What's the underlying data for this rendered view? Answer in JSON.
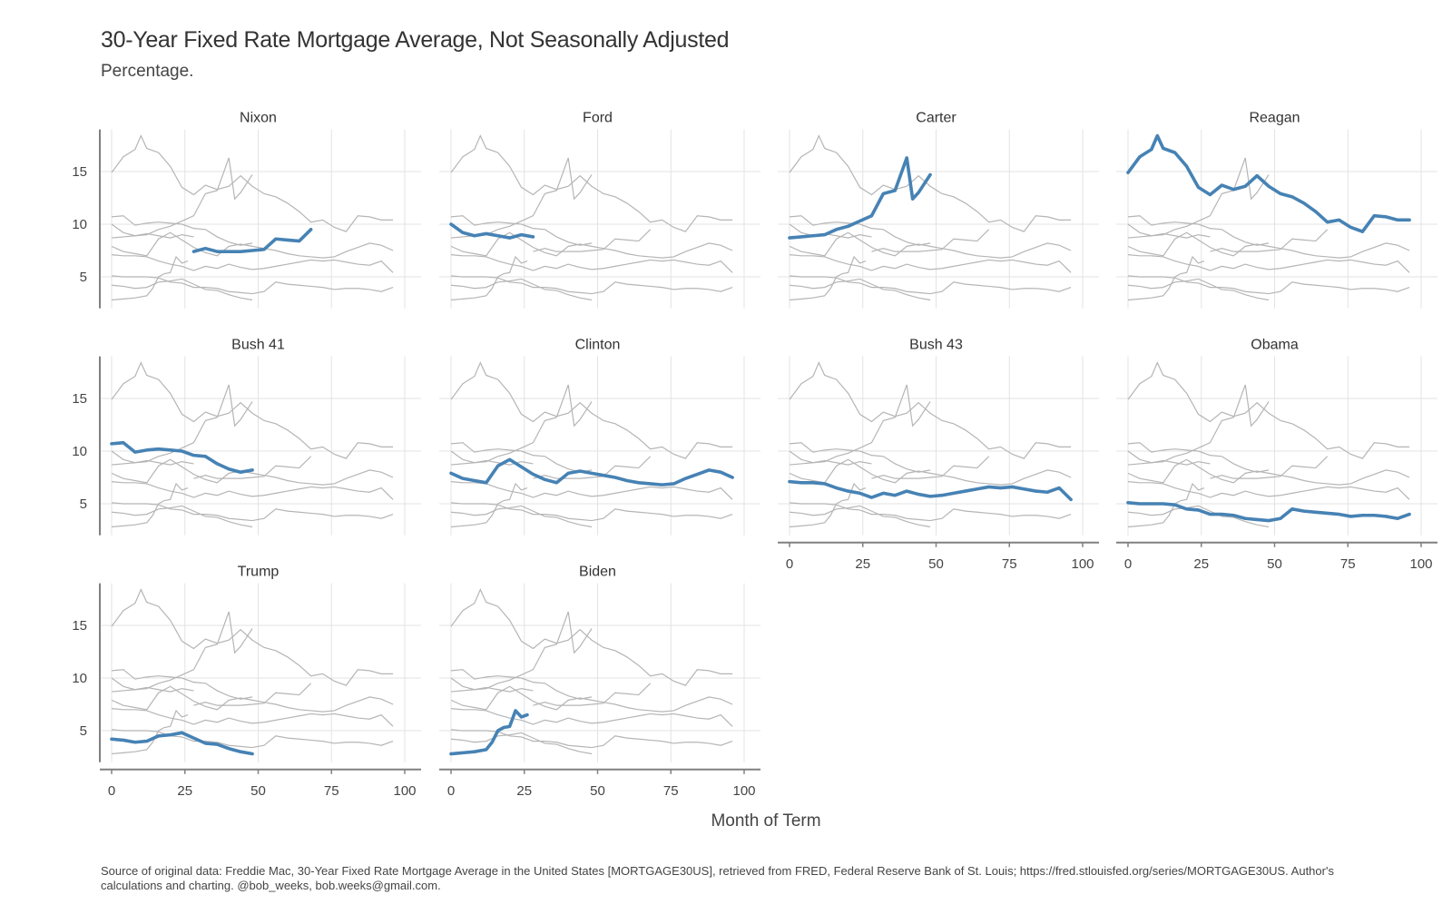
{
  "title": "30-Year Fixed Rate Mortgage Average, Not Seasonally Adjusted",
  "subtitle": "Percentage.",
  "x_axis_label": "Month of Term",
  "source_note": "Source of original data: Freddie Mac, 30-Year Fixed Rate Mortgage Average in the United States [MORTGAGE30US], retrieved from FRED, Federal Reserve Bank of St. Louis; https://fred.stlouisfed.org/series/MORTGAGE30US. Author's calculations and charting. @bob_weeks, bob.weeks@gmail.com.",
  "colors": {
    "highlight": "#4682b4",
    "background_series": "#b5b5b5",
    "grid": "#e3e3e3",
    "axis": "#808080"
  },
  "chart_data": {
    "type": "line",
    "layout": "small multiples, 4 columns x 3 rows",
    "x_ticks": [
      0,
      25,
      50,
      75,
      100
    ],
    "y_ticks": [
      5,
      10,
      15
    ],
    "xlim": [
      -4,
      102
    ],
    "ylim": [
      2,
      19
    ],
    "grid": true,
    "highlight_note": "each panel highlights its own president's series; all other presidents shown as thin gray lines",
    "series": [
      {
        "name": "Nixon",
        "x": [
          28,
          32,
          36,
          40,
          44,
          48,
          52,
          56,
          60,
          64,
          68
        ],
        "values": [
          7.4,
          7.7,
          7.4,
          7.4,
          7.4,
          7.5,
          7.6,
          8.6,
          8.5,
          8.4,
          9.5
        ]
      },
      {
        "name": "Ford",
        "x": [
          0,
          4,
          8,
          12,
          16,
          20,
          24,
          28
        ],
        "values": [
          10.0,
          9.2,
          8.9,
          9.1,
          8.9,
          8.7,
          9.0,
          8.8
        ]
      },
      {
        "name": "Carter",
        "x": [
          0,
          4,
          8,
          12,
          16,
          20,
          24,
          28,
          32,
          36,
          40,
          42,
          44,
          48
        ],
        "values": [
          8.7,
          8.8,
          8.9,
          9.0,
          9.5,
          9.8,
          10.3,
          10.8,
          12.9,
          13.2,
          16.3,
          12.4,
          13.0,
          14.7
        ]
      },
      {
        "name": "Reagan",
        "x": [
          0,
          4,
          8,
          10,
          12,
          16,
          20,
          24,
          28,
          32,
          36,
          40,
          44,
          48,
          52,
          56,
          60,
          64,
          68,
          72,
          76,
          80,
          84,
          88,
          92,
          96
        ],
        "values": [
          14.9,
          16.4,
          17.1,
          18.4,
          17.2,
          16.8,
          15.5,
          13.5,
          12.8,
          13.7,
          13.3,
          13.6,
          14.6,
          13.6,
          12.9,
          12.6,
          12.0,
          11.2,
          10.2,
          10.4,
          9.7,
          9.3,
          10.8,
          10.7,
          10.4,
          10.4
        ]
      },
      {
        "name": "Bush 41",
        "x": [
          0,
          4,
          8,
          12,
          16,
          20,
          24,
          28,
          32,
          36,
          40,
          44,
          48
        ],
        "values": [
          10.7,
          10.8,
          9.9,
          10.1,
          10.2,
          10.1,
          10.0,
          9.6,
          9.5,
          8.8,
          8.3,
          8.0,
          8.2
        ]
      },
      {
        "name": "Clinton",
        "x": [
          0,
          4,
          8,
          12,
          16,
          20,
          24,
          28,
          32,
          36,
          40,
          44,
          48,
          52,
          56,
          60,
          64,
          68,
          72,
          76,
          80,
          84,
          88,
          92,
          96
        ],
        "values": [
          7.9,
          7.4,
          7.2,
          7.0,
          8.6,
          9.2,
          8.5,
          7.8,
          7.3,
          7.0,
          7.9,
          8.1,
          7.9,
          7.7,
          7.5,
          7.2,
          7.0,
          6.9,
          6.8,
          6.9,
          7.4,
          7.8,
          8.2,
          8.0,
          7.5
        ]
      },
      {
        "name": "Bush 43",
        "x": [
          0,
          4,
          8,
          12,
          16,
          20,
          24,
          28,
          32,
          36,
          40,
          44,
          48,
          52,
          56,
          60,
          64,
          68,
          72,
          76,
          80,
          84,
          88,
          92,
          96
        ],
        "values": [
          7.1,
          7.0,
          7.0,
          6.9,
          6.5,
          6.2,
          6.0,
          5.6,
          6.0,
          5.8,
          6.2,
          5.9,
          5.7,
          5.8,
          6.0,
          6.2,
          6.4,
          6.6,
          6.5,
          6.6,
          6.4,
          6.2,
          6.1,
          6.5,
          5.4
        ]
      },
      {
        "name": "Obama",
        "x": [
          0,
          4,
          8,
          12,
          16,
          20,
          24,
          28,
          32,
          36,
          40,
          44,
          48,
          52,
          56,
          60,
          64,
          68,
          72,
          76,
          80,
          84,
          88,
          92,
          96
        ],
        "values": [
          5.1,
          5.0,
          5.0,
          5.0,
          4.9,
          4.5,
          4.4,
          4.0,
          4.0,
          3.9,
          3.6,
          3.5,
          3.4,
          3.6,
          4.5,
          4.3,
          4.2,
          4.1,
          4.0,
          3.8,
          3.9,
          3.9,
          3.8,
          3.6,
          4.0
        ]
      },
      {
        "name": "Trump",
        "x": [
          0,
          4,
          8,
          12,
          16,
          20,
          24,
          28,
          32,
          36,
          40,
          44,
          48
        ],
        "values": [
          4.2,
          4.1,
          3.9,
          4.0,
          4.5,
          4.6,
          4.8,
          4.3,
          3.8,
          3.7,
          3.3,
          3.0,
          2.8
        ]
      },
      {
        "name": "Biden",
        "x": [
          0,
          4,
          8,
          12,
          14,
          16,
          18,
          20,
          22,
          24,
          26
        ],
        "values": [
          2.8,
          2.9,
          3.0,
          3.2,
          3.9,
          5.0,
          5.3,
          5.4,
          6.9,
          6.3,
          6.5
        ]
      }
    ]
  }
}
